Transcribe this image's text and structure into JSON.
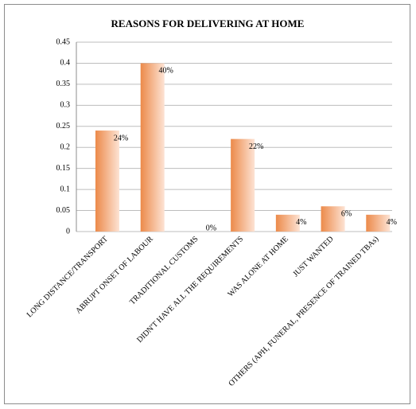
{
  "chart_data": {
    "type": "bar",
    "title": "REASONS FOR DELIVERING AT HOME",
    "categories": [
      "LONG DISTANCE/TRANSPORT",
      "ABRUPT ONSET OF LABOUR",
      "TRADITIONAL CUSTOMS",
      "DIDN'T HAVE ALL THE REQUIREMENTS",
      "WAS ALONE AT HOME",
      "JUST WANTED",
      "OTHERS (APH, FUNERAL, PRESENCE OF TRAINED TBAs)"
    ],
    "values": [
      0.24,
      0.4,
      0,
      0.22,
      0.04,
      0.06,
      0.04
    ],
    "value_labels": [
      "24%",
      "40%",
      "0%",
      "22%",
      "4%",
      "6%",
      "4%"
    ],
    "color": "#ec8a4a",
    "ylim": [
      0,
      0.45
    ],
    "yticks": [
      0,
      0.05,
      0.1,
      0.15,
      0.2,
      0.25,
      0.3,
      0.35,
      0.4,
      0.45
    ],
    "grid": true
  }
}
